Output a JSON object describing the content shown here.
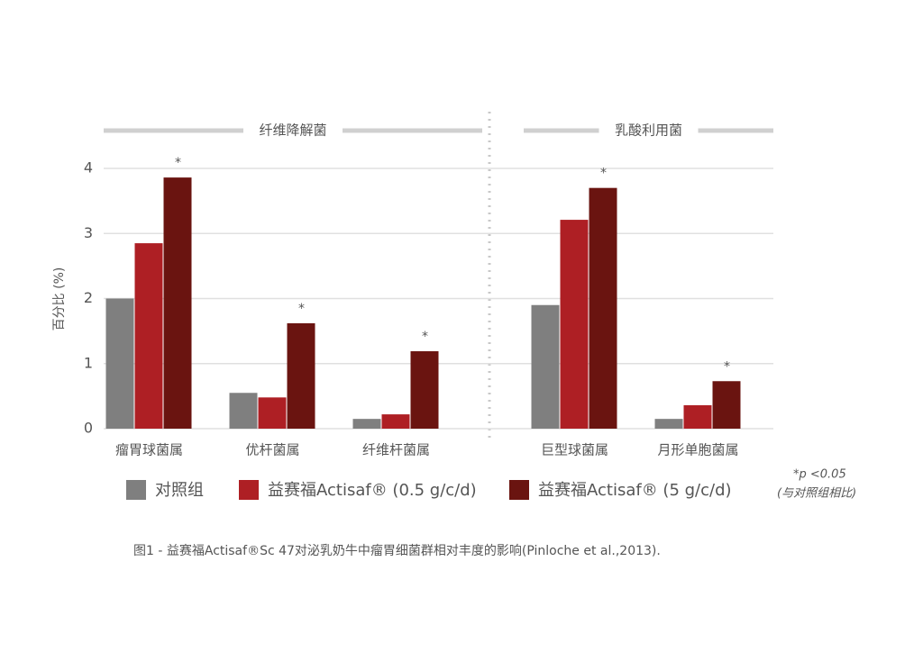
{
  "chart_data": {
    "type": "bar",
    "y_label": "百分比 (%)",
    "categories": [
      "瘤胃球菌属",
      "优杆菌属",
      "纤维杆菌属",
      "巨型球菌属",
      "月形单胞菌属"
    ],
    "groups": [
      {
        "label": "纤维降解菌",
        "size": 3
      },
      {
        "label": "乳酸利用菌",
        "size": 2
      }
    ],
    "series": [
      {
        "name": "对照组",
        "color": "#7f7f7f",
        "values": [
          2.0,
          0.55,
          0.15,
          1.9,
          0.15
        ]
      },
      {
        "name": "益赛福Actisaf® (0.5 g/c/d)",
        "color": "#ae1f24",
        "values": [
          2.85,
          0.48,
          0.22,
          3.21,
          0.36
        ]
      },
      {
        "name": "益赛福Actisaf® (5 g/c/d)",
        "color": "#6a1410",
        "values": [
          3.86,
          1.62,
          1.19,
          3.7,
          0.73
        ]
      }
    ],
    "significance": [
      "*",
      "*",
      "*",
      "*",
      "*"
    ],
    "ylim": [
      0,
      4
    ],
    "yticks": [
      0,
      1,
      2,
      3,
      4
    ],
    "grid": true,
    "footnote": [
      "*p <0.05",
      "(与对照组相比)"
    ],
    "caption": "图1 - 益赛福Actisaf®Sc 47对泌乳奶牛中瘤胃细菌群相对丰度的影响(Pinloche et al.,2013)."
  }
}
